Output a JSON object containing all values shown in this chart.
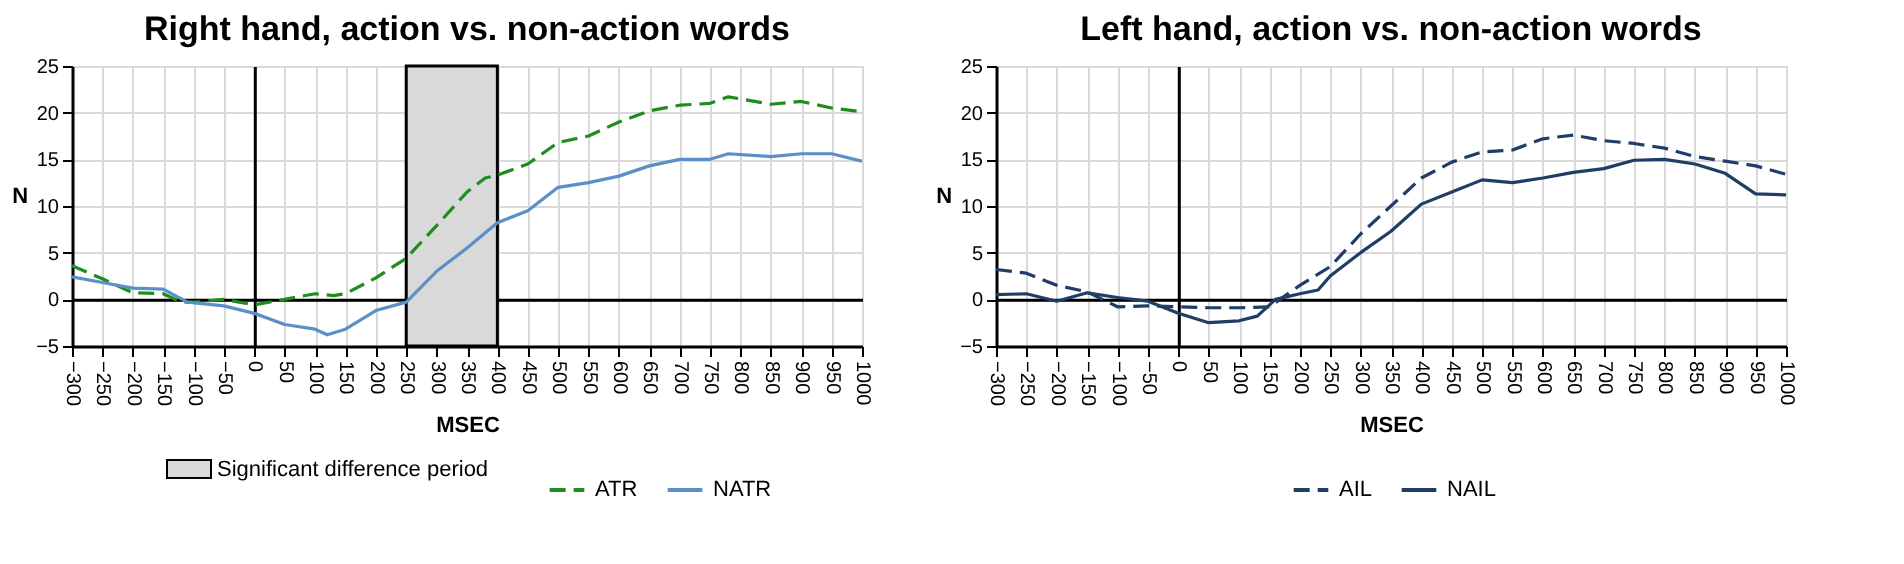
{
  "chart_data": [
    {
      "type": "line",
      "title": "Right hand, action vs. non-action words",
      "xlabel": "MSEC",
      "ylabel": "N",
      "xlim": [
        -300,
        1000
      ],
      "ylim": [
        -5,
        25
      ],
      "xticks": [
        -300,
        -250,
        -200,
        -150,
        -100,
        -50,
        0,
        50,
        100,
        150,
        200,
        250,
        300,
        350,
        400,
        450,
        500,
        550,
        600,
        650,
        700,
        750,
        800,
        850,
        900,
        950,
        1000
      ],
      "yticks": [
        -5,
        0,
        5,
        10,
        15,
        20,
        25
      ],
      "grid": true,
      "legend": "bottom",
      "bands": [
        {
          "axis": "x",
          "from": 250,
          "to": 400,
          "label": "Significant difference period",
          "color": "#d9d9d9"
        }
      ],
      "series": [
        {
          "name": "ATR",
          "color": "#1e8c1e",
          "line_style": "dashed",
          "x": [
            -300,
            -250,
            -200,
            -150,
            -120,
            -100,
            -50,
            0,
            50,
            100,
            130,
            150,
            200,
            250,
            300,
            350,
            380,
            400,
            450,
            500,
            550,
            600,
            650,
            700,
            750,
            780,
            850,
            900,
            950,
            1000
          ],
          "values": [
            3.6,
            2.2,
            0.7,
            0.6,
            -0.3,
            -0.3,
            0,
            -0.6,
            0,
            0.6,
            0.4,
            0.6,
            2.3,
            4.4,
            7.9,
            11.5,
            13,
            13.3,
            14.5,
            16.8,
            17.5,
            19,
            20.2,
            20.8,
            21,
            21.7,
            20.9,
            21.2,
            20.5,
            20.1
          ]
        },
        {
          "name": "NATR",
          "color": "#5b8fc7",
          "line_style": "solid",
          "x": [
            -300,
            -250,
            -200,
            -150,
            -110,
            -50,
            0,
            50,
            100,
            120,
            150,
            200,
            250,
            300,
            350,
            400,
            450,
            500,
            550,
            600,
            650,
            700,
            750,
            780,
            850,
            900,
            950,
            1000
          ],
          "values": [
            2.4,
            1.8,
            1.2,
            1.1,
            -0.3,
            -0.7,
            -1.5,
            -2.7,
            -3.2,
            -3.8,
            -3.2,
            -1.2,
            -0.3,
            3,
            5.5,
            8.2,
            9.5,
            12,
            12.5,
            13.2,
            14.3,
            15,
            15,
            15.6,
            15.3,
            15.6,
            15.6,
            14.8
          ]
        }
      ]
    },
    {
      "type": "line",
      "title": "Left hand, action vs. non-action words",
      "xlabel": "MSEC",
      "ylabel": "N",
      "xlim": [
        -300,
        1000
      ],
      "ylim": [
        -5,
        25
      ],
      "xticks": [
        -300,
        -250,
        -200,
        -150,
        -100,
        -50,
        0,
        50,
        100,
        150,
        200,
        250,
        300,
        350,
        400,
        450,
        500,
        550,
        600,
        650,
        700,
        750,
        800,
        850,
        900,
        950,
        1000
      ],
      "yticks": [
        -5,
        0,
        5,
        10,
        15,
        20,
        25
      ],
      "grid": true,
      "legend": "bottom",
      "series": [
        {
          "name": "AIL",
          "color": "#1f3d66",
          "line_style": "dashed",
          "x": [
            -300,
            -250,
            -200,
            -150,
            -100,
            -50,
            0,
            50,
            100,
            150,
            200,
            250,
            300,
            350,
            400,
            450,
            500,
            550,
            600,
            650,
            700,
            750,
            800,
            850,
            900,
            950,
            1000
          ],
          "values": [
            3.2,
            2.8,
            1.5,
            0.8,
            -0.8,
            -0.7,
            -0.8,
            -0.9,
            -0.9,
            -0.8,
            1.5,
            3.5,
            7,
            10,
            13,
            14.7,
            15.8,
            16,
            17.2,
            17.6,
            17,
            16.7,
            16.2,
            15.3,
            14.8,
            14.3,
            13.4
          ]
        },
        {
          "name": "NAIL",
          "color": "#1f3d66",
          "line_style": "solid",
          "x": [
            -300,
            -250,
            -200,
            -150,
            -100,
            -50,
            0,
            50,
            100,
            130,
            160,
            200,
            230,
            250,
            300,
            350,
            400,
            450,
            500,
            550,
            600,
            650,
            700,
            750,
            800,
            850,
            900,
            950,
            1000
          ],
          "values": [
            0.5,
            0.6,
            -0.2,
            0.7,
            0.2,
            -0.2,
            -1.5,
            -2.5,
            -2.3,
            -1.8,
            0,
            0.6,
            1,
            2.5,
            5,
            7.3,
            10.2,
            11.5,
            12.8,
            12.5,
            13,
            13.6,
            14,
            14.9,
            15,
            14.5,
            13.5,
            11.3,
            11.2
          ]
        }
      ]
    }
  ]
}
